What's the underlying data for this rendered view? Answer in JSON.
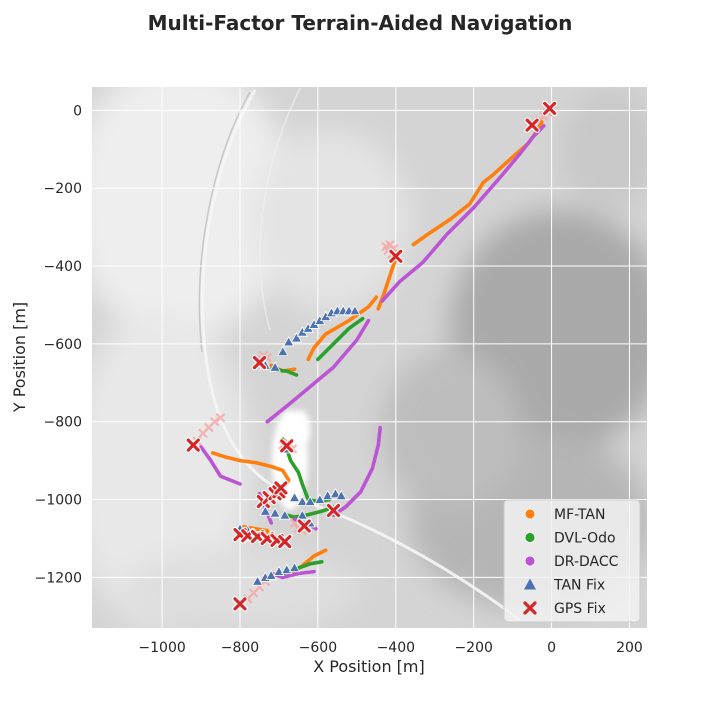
{
  "chart_data": {
    "type": "scatter",
    "title": "Multi-Factor Terrain-Aided Navigation",
    "xlabel": "X Position [m]",
    "ylabel": "Y Position [m]",
    "xlim": [
      -1180,
      245
    ],
    "ylim": [
      -1330,
      60
    ],
    "xticks": [
      -1000,
      -800,
      -600,
      -400,
      -200,
      0,
      200
    ],
    "yticks": [
      0,
      -200,
      -400,
      -600,
      -800,
      -1000,
      -1200
    ],
    "xtick_labels": [
      "−1000",
      "−800",
      "−600",
      "−400",
      "−200",
      "0",
      "200"
    ],
    "ytick_labels": [
      "0",
      "−200",
      "−400",
      "−600",
      "−800",
      "−1000",
      "−1200"
    ],
    "grid": true,
    "background": "grayscale terrain map",
    "legend_position": "lower right",
    "series": [
      {
        "name": "MF-TAN",
        "marker": "circle",
        "color": "#ff7f0e",
        "segments": [
          [
            [
              -355,
              -345
            ],
            [
              -320,
              -320
            ],
            [
              -260,
              -280
            ],
            [
              -210,
              -240
            ],
            [
              -175,
              -185
            ],
            [
              -150,
              -165
            ],
            [
              -100,
              -120
            ],
            [
              -60,
              -85
            ],
            [
              -35,
              -50
            ],
            [
              -25,
              -30
            ]
          ],
          [
            [
              -445,
              -510
            ],
            [
              -430,
              -470
            ],
            [
              -410,
              -410
            ],
            [
              -400,
              -380
            ]
          ],
          [
            [
              -625,
              -640
            ],
            [
              -610,
              -610
            ],
            [
              -580,
              -575
            ],
            [
              -520,
              -540
            ],
            [
              -470,
              -505
            ],
            [
              -450,
              -480
            ]
          ],
          [
            [
              -720,
              -655
            ],
            [
              -690,
              -670
            ],
            [
              -660,
              -665
            ]
          ],
          [
            [
              -870,
              -880
            ],
            [
              -840,
              -890
            ],
            [
              -800,
              -900
            ],
            [
              -760,
              -905
            ],
            [
              -720,
              -915
            ],
            [
              -690,
              -925
            ],
            [
              -675,
              -950
            ],
            [
              -690,
              -975
            ],
            [
              -715,
              -985
            ]
          ],
          [
            [
              -790,
              -1070
            ],
            [
              -760,
              -1075
            ],
            [
              -730,
              -1080
            ],
            [
              -720,
              -1100
            ],
            [
              -700,
              -1110
            ]
          ],
          [
            [
              -670,
              -1190
            ],
            [
              -640,
              -1170
            ],
            [
              -610,
              -1145
            ],
            [
              -580,
              -1130
            ]
          ],
          [
            [
              -730,
              -1200
            ],
            [
              -705,
              -1190
            ]
          ]
        ]
      },
      {
        "name": "DVL-Odo",
        "marker": "circle",
        "color": "#2ca02c",
        "segments": [
          [
            [
              -600,
              -640
            ],
            [
              -565,
              -605
            ],
            [
              -520,
              -560
            ],
            [
              -485,
              -535
            ]
          ],
          [
            [
              -720,
              -665
            ],
            [
              -680,
              -670
            ],
            [
              -655,
              -680
            ]
          ],
          [
            [
              -690,
              -845
            ],
            [
              -680,
              -870
            ],
            [
              -670,
              -900
            ],
            [
              -650,
              -930
            ],
            [
              -640,
              -960
            ],
            [
              -625,
              -1000
            ],
            [
              -600,
              -1005
            ],
            [
              -570,
              -1000
            ]
          ],
          [
            [
              -680,
              -1040
            ],
            [
              -660,
              -1045
            ],
            [
              -630,
              -1040
            ],
            [
              -590,
              -1030
            ],
            [
              -560,
              -1020
            ]
          ],
          [
            [
              -690,
              -1190
            ],
            [
              -660,
              -1180
            ],
            [
              -620,
              -1165
            ],
            [
              -590,
              -1160
            ]
          ]
        ]
      },
      {
        "name": "DR-DACC",
        "marker": "circle",
        "color": "#bb55d3",
        "segments": [
          [
            [
              -435,
              -490
            ],
            [
              -390,
              -440
            ],
            [
              -330,
              -390
            ],
            [
              -270,
              -320
            ],
            [
              -200,
              -250
            ],
            [
              -130,
              -170
            ],
            [
              -80,
              -110
            ],
            [
              -45,
              -65
            ],
            [
              -20,
              -40
            ]
          ],
          [
            [
              -730,
              -800
            ],
            [
              -680,
              -760
            ],
            [
              -620,
              -710
            ],
            [
              -560,
              -660
            ],
            [
              -500,
              -590
            ],
            [
              -470,
              -540
            ]
          ],
          [
            [
              -440,
              -815
            ],
            [
              -445,
              -860
            ],
            [
              -460,
              -920
            ],
            [
              -490,
              -980
            ],
            [
              -530,
              -1020
            ],
            [
              -560,
              -1040
            ]
          ],
          [
            [
              -900,
              -865
            ],
            [
              -875,
              -900
            ],
            [
              -850,
              -940
            ],
            [
              -800,
              -960
            ]
          ],
          [
            [
              -750,
              -985
            ],
            [
              -735,
              -1020
            ],
            [
              -720,
              -1060
            ]
          ],
          [
            [
              -660,
              -1050
            ],
            [
              -640,
              -1060
            ],
            [
              -620,
              -1065
            ],
            [
              -605,
              -1075
            ]
          ],
          [
            [
              -720,
              -1190
            ],
            [
              -690,
              -1200
            ],
            [
              -650,
              -1190
            ],
            [
              -610,
              -1185
            ]
          ]
        ]
      },
      {
        "name": "TAN Fix",
        "marker": "triangle",
        "color": "#4c72b0",
        "points": [
          [
            -690,
            -620
          ],
          [
            -675,
            -595
          ],
          [
            -655,
            -585
          ],
          [
            -640,
            -570
          ],
          [
            -625,
            -560
          ],
          [
            -610,
            -550
          ],
          [
            -595,
            -540
          ],
          [
            -580,
            -530
          ],
          [
            -565,
            -520
          ],
          [
            -550,
            -515
          ],
          [
            -535,
            -515
          ],
          [
            -520,
            -515
          ],
          [
            -505,
            -515
          ],
          [
            -735,
            -655
          ],
          [
            -710,
            -660
          ],
          [
            -685,
            -870
          ],
          [
            -660,
            -995
          ],
          [
            -640,
            -1005
          ],
          [
            -620,
            -1005
          ],
          [
            -595,
            -1000
          ],
          [
            -575,
            -990
          ],
          [
            -555,
            -985
          ],
          [
            -540,
            -990
          ],
          [
            -735,
            -1030
          ],
          [
            -710,
            -1035
          ],
          [
            -685,
            -1040
          ],
          [
            -640,
            -1040
          ],
          [
            -620,
            -1060
          ],
          [
            -800,
            -1075
          ],
          [
            -780,
            -1080
          ],
          [
            -755,
            -1210
          ],
          [
            -735,
            -1200
          ],
          [
            -720,
            -1195
          ],
          [
            -700,
            -1185
          ],
          [
            -680,
            -1180
          ],
          [
            -660,
            -1175
          ]
        ]
      },
      {
        "name": "GPS Fix",
        "marker": "x",
        "color": "#d62728",
        "points": [
          [
            -50,
            -38
          ],
          [
            -5,
            5
          ],
          [
            -400,
            -375
          ],
          [
            -750,
            -648
          ],
          [
            -920,
            -860
          ],
          [
            -680,
            -862
          ],
          [
            -740,
            -1005
          ],
          [
            -725,
            -995
          ],
          [
            -710,
            -985
          ],
          [
            -700,
            -980
          ],
          [
            -695,
            -970
          ],
          [
            -560,
            -1028
          ],
          [
            -635,
            -1068
          ],
          [
            -800,
            -1090
          ],
          [
            -780,
            -1093
          ],
          [
            -755,
            -1095
          ],
          [
            -730,
            -1100
          ],
          [
            -705,
            -1105
          ],
          [
            -685,
            -1108
          ],
          [
            -800,
            -1268
          ]
        ]
      }
    ],
    "gps_trails": [
      [
        [
          -40,
          -35
        ],
        [
          -30,
          -25
        ],
        [
          -20,
          -15
        ],
        [
          -10,
          -5
        ],
        [
          0,
          0
        ]
      ],
      [
        [
          -410,
          -370
        ],
        [
          -420,
          -360
        ],
        [
          -425,
          -350
        ],
        [
          -415,
          -345
        ],
        [
          -405,
          -355
        ]
      ],
      [
        [
          -910,
          -850
        ],
        [
          -895,
          -830
        ],
        [
          -880,
          -815
        ],
        [
          -865,
          -800
        ],
        [
          -850,
          -790
        ]
      ],
      [
        [
          -745,
          -640
        ],
        [
          -740,
          -630
        ],
        [
          -730,
          -635
        ]
      ],
      [
        [
          -780,
          -1255
        ],
        [
          -765,
          -1240
        ],
        [
          -750,
          -1225
        ],
        [
          -735,
          -1210
        ]
      ],
      [
        [
          -660,
          -1060
        ],
        [
          -650,
          -1075
        ],
        [
          -640,
          -1080
        ]
      ],
      [
        [
          -690,
          -860
        ],
        [
          -675,
          -855
        ],
        [
          -665,
          -870
        ]
      ]
    ]
  }
}
